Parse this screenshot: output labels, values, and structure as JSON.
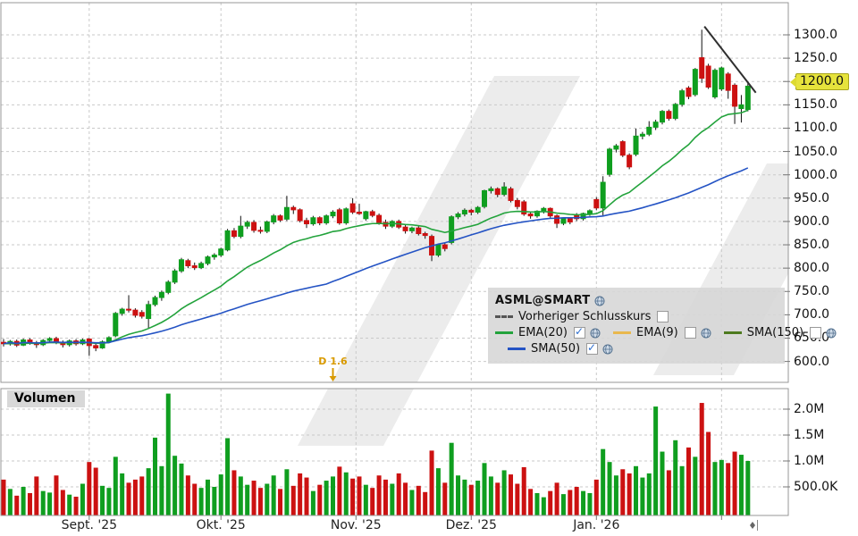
{
  "meta": {
    "app_title": "ASML@SMART chart"
  },
  "legend": {
    "title": "ASML@SMART",
    "items": [
      {
        "id": "prev-close",
        "label": "Vorheriger Schlusskurs",
        "checked": false,
        "swatch": "dashed-gray",
        "globe": false
      },
      {
        "id": "ema20",
        "label": "EMA(20)",
        "checked": true,
        "swatch": "#23a33c",
        "globe": true
      },
      {
        "id": "ema9",
        "label": "EMA(9)",
        "checked": false,
        "swatch": "#e9b84e",
        "globe": true
      },
      {
        "id": "sma150",
        "label": "SMA(150)",
        "checked": false,
        "swatch": "#4d7a1f",
        "globe": true
      },
      {
        "id": "sma50",
        "label": "SMA(50)",
        "checked": true,
        "swatch": "#2453c4",
        "globe": true
      }
    ]
  },
  "volume_panel": {
    "label": "Volumen"
  },
  "axes": {
    "price_tick_labels": [
      "1300.0",
      "1250.0",
      "1200.0",
      "1150.0",
      "1100.0",
      "1050.0",
      "1000.0",
      "950.0",
      "900.0",
      "850.0",
      "800.0",
      "750.0",
      "700.0",
      "650.0",
      "600.0"
    ],
    "highlight": {
      "label": "1200.0",
      "price": 1200
    },
    "volume_ticks": [
      {
        "v": 2000,
        "label": "2.0M"
      },
      {
        "v": 1500,
        "label": "1.5M"
      },
      {
        "v": 1000,
        "label": "1.0M"
      },
      {
        "v": 500,
        "label": "500.0K"
      }
    ]
  },
  "annotations": {
    "dividend": {
      "label": "D 1.6",
      "index": 50
    },
    "trendline": {
      "i1": 106.4,
      "p1": 1318,
      "i2": 114.2,
      "p2": 1176
    }
  },
  "colors": {
    "up": "#0f9e1f",
    "down": "#cc1111",
    "ema20": "#23a33c",
    "sma50": "#2453c4",
    "grid": "#c9c9c9",
    "border": "#979797",
    "watermark": "#ececec",
    "dividend": "#d99a00",
    "trend": "#2f2f2f"
  },
  "chart_data": {
    "type": "candlestick+volume",
    "title": "ASML@SMART",
    "price_axis_range": [
      600,
      1300
    ],
    "volume_axis_labels": [
      "500.0K",
      "1.0M",
      "1.5M",
      "2.0M"
    ],
    "months": [
      {
        "label": "Sept. '25",
        "index": 13
      },
      {
        "label": "Okt. '25",
        "index": 33
      },
      {
        "label": "Nov. '25",
        "index": 53.5
      },
      {
        "label": "Dez. '25",
        "index": 71
      },
      {
        "label": "Jan. '26",
        "index": 90
      },
      {
        "label": "",
        "index": 109
      }
    ],
    "candles": [
      [
        641,
        648,
        632,
        638
      ],
      [
        638,
        646,
        634,
        643
      ],
      [
        643,
        647,
        631,
        635
      ],
      [
        635,
        649,
        633,
        646
      ],
      [
        646,
        650,
        636,
        640
      ],
      [
        640,
        644,
        629,
        636
      ],
      [
        636,
        648,
        633,
        645
      ],
      [
        645,
        652,
        640,
        649
      ],
      [
        649,
        653,
        637,
        641
      ],
      [
        641,
        645,
        630,
        636
      ],
      [
        636,
        647,
        632,
        644
      ],
      [
        644,
        648,
        634,
        638
      ],
      [
        638,
        649,
        635,
        646
      ],
      [
        648,
        650,
        612,
        634
      ],
      [
        634,
        638,
        622,
        629
      ],
      [
        629,
        645,
        627,
        642
      ],
      [
        642,
        654,
        639,
        651
      ],
      [
        655,
        706,
        652,
        703
      ],
      [
        703,
        715,
        698,
        712
      ],
      [
        712,
        742,
        705,
        710
      ],
      [
        710,
        714,
        694,
        699
      ],
      [
        705,
        710,
        692,
        697
      ],
      [
        692,
        730,
        672,
        722
      ],
      [
        722,
        741,
        718,
        737
      ],
      [
        737,
        752,
        730,
        748
      ],
      [
        748,
        774,
        744,
        770
      ],
      [
        770,
        798,
        766,
        794
      ],
      [
        794,
        822,
        790,
        818
      ],
      [
        816,
        820,
        800,
        805
      ],
      [
        805,
        812,
        796,
        801
      ],
      [
        801,
        814,
        798,
        810
      ],
      [
        810,
        827,
        806,
        824
      ],
      [
        824,
        832,
        818,
        828
      ],
      [
        828,
        844,
        824,
        841
      ],
      [
        839,
        884,
        836,
        880
      ],
      [
        880,
        886,
        864,
        868
      ],
      [
        868,
        912,
        864,
        890
      ],
      [
        890,
        902,
        884,
        898
      ],
      [
        898,
        903,
        876,
        881
      ],
      [
        881,
        889,
        874,
        879
      ],
      [
        879,
        902,
        875,
        899
      ],
      [
        899,
        916,
        894,
        912
      ],
      [
        912,
        915,
        899,
        903
      ],
      [
        905,
        955,
        901,
        930
      ],
      [
        930,
        934,
        916,
        925
      ],
      [
        925,
        928,
        898,
        902
      ],
      [
        902,
        908,
        886,
        895
      ],
      [
        895,
        912,
        891,
        908
      ],
      [
        908,
        911,
        892,
        897
      ],
      [
        897,
        915,
        893,
        912
      ],
      [
        912,
        924,
        907,
        920
      ],
      [
        925,
        929,
        893,
        897
      ],
      [
        897,
        930,
        893,
        927
      ],
      [
        938,
        950,
        916,
        920
      ],
      [
        920,
        938,
        914,
        917
      ],
      [
        906,
        923,
        902,
        921
      ],
      [
        921,
        925,
        909,
        913
      ],
      [
        913,
        917,
        893,
        898
      ],
      [
        898,
        904,
        884,
        890
      ],
      [
        890,
        903,
        886,
        900
      ],
      [
        900,
        904,
        884,
        888
      ],
      [
        888,
        893,
        874,
        880
      ],
      [
        880,
        889,
        875,
        886
      ],
      [
        886,
        890,
        870,
        874
      ],
      [
        874,
        878,
        863,
        870
      ],
      [
        868,
        872,
        815,
        828
      ],
      [
        828,
        853,
        824,
        850
      ],
      [
        850,
        855,
        836,
        842
      ],
      [
        855,
        913,
        851,
        910
      ],
      [
        910,
        920,
        905,
        916
      ],
      [
        916,
        928,
        911,
        924
      ],
      [
        924,
        927,
        913,
        920
      ],
      [
        920,
        933,
        916,
        930
      ],
      [
        932,
        968,
        928,
        966
      ],
      [
        966,
        975,
        960,
        970
      ],
      [
        970,
        973,
        952,
        958
      ],
      [
        958,
        984,
        954,
        974
      ],
      [
        970,
        974,
        941,
        945
      ],
      [
        945,
        950,
        926,
        932
      ],
      [
        942,
        946,
        912,
        916
      ],
      [
        916,
        921,
        906,
        912
      ],
      [
        912,
        924,
        908,
        922
      ],
      [
        922,
        931,
        917,
        928
      ],
      [
        928,
        930,
        908,
        912
      ],
      [
        912,
        915,
        886,
        896
      ],
      [
        896,
        908,
        892,
        906
      ],
      [
        906,
        909,
        894,
        899
      ],
      [
        914,
        918,
        901,
        906
      ],
      [
        906,
        919,
        902,
        917
      ],
      [
        917,
        926,
        912,
        923
      ],
      [
        947,
        952,
        924,
        929
      ],
      [
        929,
        997,
        913,
        984
      ],
      [
        1001,
        1058,
        996,
        1055
      ],
      [
        1055,
        1066,
        1048,
        1062
      ],
      [
        1071,
        1074,
        1038,
        1042
      ],
      [
        1042,
        1046,
        1012,
        1017
      ],
      [
        1044,
        1099,
        1040,
        1083
      ],
      [
        1083,
        1092,
        1076,
        1087
      ],
      [
        1087,
        1115,
        1083,
        1102
      ],
      [
        1102,
        1118,
        1096,
        1113
      ],
      [
        1113,
        1139,
        1108,
        1136
      ],
      [
        1136,
        1140,
        1116,
        1121
      ],
      [
        1121,
        1154,
        1117,
        1151
      ],
      [
        1151,
        1184,
        1146,
        1180
      ],
      [
        1186,
        1190,
        1162,
        1168
      ],
      [
        1172,
        1229,
        1168,
        1226
      ],
      [
        1251,
        1311,
        1197,
        1207
      ],
      [
        1233,
        1238,
        1184,
        1188
      ],
      [
        1167,
        1228,
        1163,
        1224
      ],
      [
        1184,
        1232,
        1180,
        1229
      ],
      [
        1216,
        1220,
        1163,
        1181
      ],
      [
        1192,
        1196,
        1109,
        1147
      ],
      [
        1142,
        1171,
        1112,
        1150
      ],
      [
        1140,
        1199,
        1136,
        1190
      ]
    ],
    "volumes_k": [
      640,
      460,
      330,
      500,
      380,
      700,
      420,
      390,
      720,
      440,
      350,
      310,
      560,
      980,
      870,
      520,
      480,
      1080,
      760,
      580,
      640,
      700,
      860,
      1450,
      900,
      2300,
      1100,
      950,
      720,
      560,
      480,
      640,
      500,
      740,
      1440,
      820,
      700,
      540,
      620,
      480,
      560,
      720,
      460,
      840,
      520,
      760,
      680,
      420,
      540,
      620,
      700,
      890,
      780,
      660,
      700,
      540,
      480,
      720,
      640,
      560,
      760,
      580,
      440,
      520,
      400,
      1200,
      860,
      580,
      1350,
      720,
      640,
      540,
      620,
      960,
      700,
      580,
      820,
      740,
      560,
      880,
      460,
      380,
      300,
      420,
      580,
      360,
      440,
      500,
      420,
      380,
      640,
      1230,
      980,
      720,
      840,
      760,
      900,
      680,
      760,
      2050,
      1180,
      820,
      1400,
      900,
      1260,
      1080,
      2120,
      1560,
      980,
      1020,
      960,
      1180,
      1120,
      1000
    ],
    "overlays": [
      {
        "name": "EMA(20)",
        "visible": true,
        "color": "#23a33c"
      },
      {
        "name": "SMA(50)",
        "visible": true,
        "color": "#2453c4"
      }
    ]
  }
}
